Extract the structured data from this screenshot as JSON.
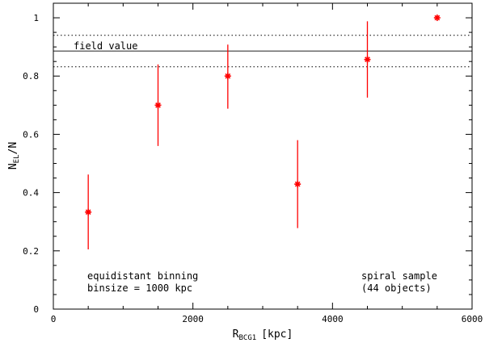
{
  "chart_data": {
    "type": "scatter",
    "xlabel": {
      "main": "R",
      "sub": "BCG1",
      "unit": "[kpc]"
    },
    "ylabel": {
      "main": "N",
      "sub": "EL",
      "suffix": "/N"
    },
    "xlim": [
      0,
      6000
    ],
    "ylim": [
      0,
      1.05
    ],
    "x_ticks": [
      0,
      2000,
      4000,
      6000
    ],
    "y_ticks": [
      0,
      0.2,
      0.4,
      0.6,
      0.8,
      1
    ],
    "x_tick_labels": [
      "0",
      "2000",
      "4000",
      "6000"
    ],
    "y_tick_labels": [
      "0",
      "0.2",
      "0.4",
      "0.6",
      "0.8",
      "1"
    ],
    "series": [
      {
        "color": "#ff0000",
        "marker": "asterisk",
        "points": [
          {
            "x": 500,
            "y": 0.333,
            "ylow": 0.205,
            "yhigh": 0.462
          },
          {
            "x": 1500,
            "y": 0.7,
            "ylow": 0.56,
            "yhigh": 0.84
          },
          {
            "x": 2500,
            "y": 0.8,
            "ylow": 0.688,
            "yhigh": 0.908
          },
          {
            "x": 3500,
            "y": 0.429,
            "ylow": 0.278,
            "yhigh": 0.58
          },
          {
            "x": 4500,
            "y": 0.857,
            "ylow": 0.726,
            "yhigh": 0.988
          },
          {
            "x": 5500,
            "y": 1.0,
            "ylow": 1.0,
            "yhigh": 1.0
          }
        ]
      }
    ],
    "reference_lines": {
      "label": "field value",
      "value": 0.886,
      "lower": 0.832,
      "upper": 0.94
    },
    "annotations": {
      "left_lines": [
        "equidistant binning",
        "binsize = 1000 kpc"
      ],
      "right_lines": [
        "spiral sample",
        "(44 objects)"
      ]
    }
  }
}
